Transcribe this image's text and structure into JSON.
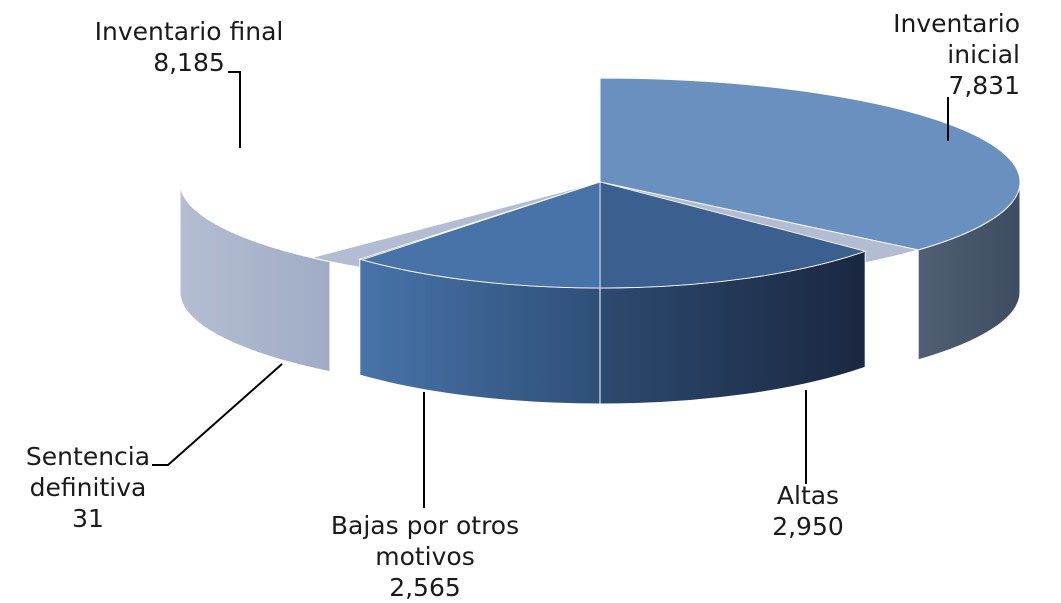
{
  "chart_data": {
    "type": "pie",
    "style": "3d-exploded-pie",
    "slices": [
      {
        "label_lines": [
          "Inventario",
          "inicial"
        ],
        "value": 7831,
        "value_text": "7,831",
        "color": "#6a90bf"
      },
      {
        "label_lines": [
          "Altas"
        ],
        "value": 2950,
        "value_text": "2,950",
        "color": "#3b5f8f"
      },
      {
        "label_lines": [
          "Bajas por otros",
          "motivos"
        ],
        "value": 2565,
        "value_text": "2,565",
        "color": "#4873a8"
      },
      {
        "label_lines": [
          "Sentencia",
          "definitiva"
        ],
        "value": 31,
        "value_text": "31",
        "color": "#7d9bc4"
      },
      {
        "label_lines": [
          "Inventario final"
        ],
        "value": 8185,
        "value_text": "8,185",
        "color": "#b2bcd3"
      }
    ],
    "legend": "none",
    "data_labels": "outside with leader lines"
  }
}
